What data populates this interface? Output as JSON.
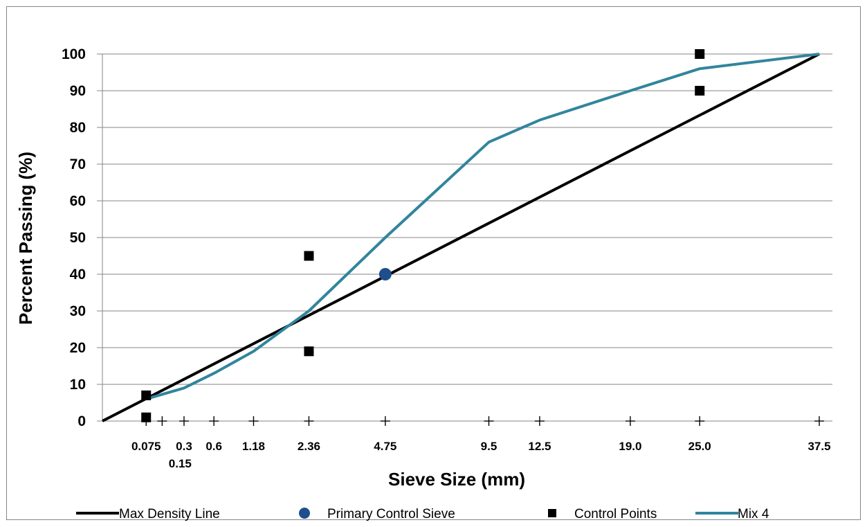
{
  "chart_data": {
    "type": "line",
    "xlabel": "Sieve Size (mm)",
    "ylabel": "Percent Passing (%)",
    "x_scale": "power 0.45",
    "xlim": [
      0,
      37.5
    ],
    "ylim": [
      0,
      100
    ],
    "y_ticks": [
      0,
      10,
      20,
      30,
      40,
      50,
      60,
      70,
      80,
      90,
      100
    ],
    "x_ticks": [
      {
        "value": 0.075,
        "label": "0.075"
      },
      {
        "value": 0.15,
        "label": "0.15"
      },
      {
        "value": 0.3,
        "label": "0.3"
      },
      {
        "value": 0.6,
        "label": "0.6"
      },
      {
        "value": 1.18,
        "label": "1.18"
      },
      {
        "value": 2.36,
        "label": "2.36"
      },
      {
        "value": 4.75,
        "label": "4.75"
      },
      {
        "value": 9.5,
        "label": "9.5"
      },
      {
        "value": 12.5,
        "label": "12.5"
      },
      {
        "value": 19.0,
        "label": "19.0"
      },
      {
        "value": 25.0,
        "label": "25.0"
      },
      {
        "value": 37.5,
        "label": "37.5"
      }
    ],
    "grid": "horizontal",
    "legend_position": "bottom",
    "series": [
      {
        "name": "Max Density Line",
        "kind": "line",
        "color": "#000000",
        "points": [
          [
            0,
            0
          ],
          [
            37.5,
            100
          ]
        ]
      },
      {
        "name": "Primary Control Sieve",
        "kind": "marker-circle",
        "color": "#1f4e8c",
        "points": [
          [
            4.75,
            40
          ]
        ]
      },
      {
        "name": "Control Points",
        "kind": "marker-square",
        "color": "#000000",
        "points": [
          [
            0.075,
            7
          ],
          [
            0.075,
            1
          ],
          [
            2.36,
            45
          ],
          [
            2.36,
            19
          ],
          [
            25.0,
            100
          ],
          [
            25.0,
            90
          ]
        ]
      },
      {
        "name": "Mix 4",
        "kind": "line",
        "color": "#31859c",
        "points": [
          [
            0.075,
            6
          ],
          [
            0.3,
            9
          ],
          [
            0.6,
            13
          ],
          [
            1.18,
            19
          ],
          [
            2.36,
            30
          ],
          [
            4.75,
            50
          ],
          [
            9.5,
            76
          ],
          [
            12.5,
            82
          ],
          [
            19.0,
            90
          ],
          [
            25.0,
            96
          ],
          [
            37.5,
            100
          ]
        ]
      }
    ]
  }
}
